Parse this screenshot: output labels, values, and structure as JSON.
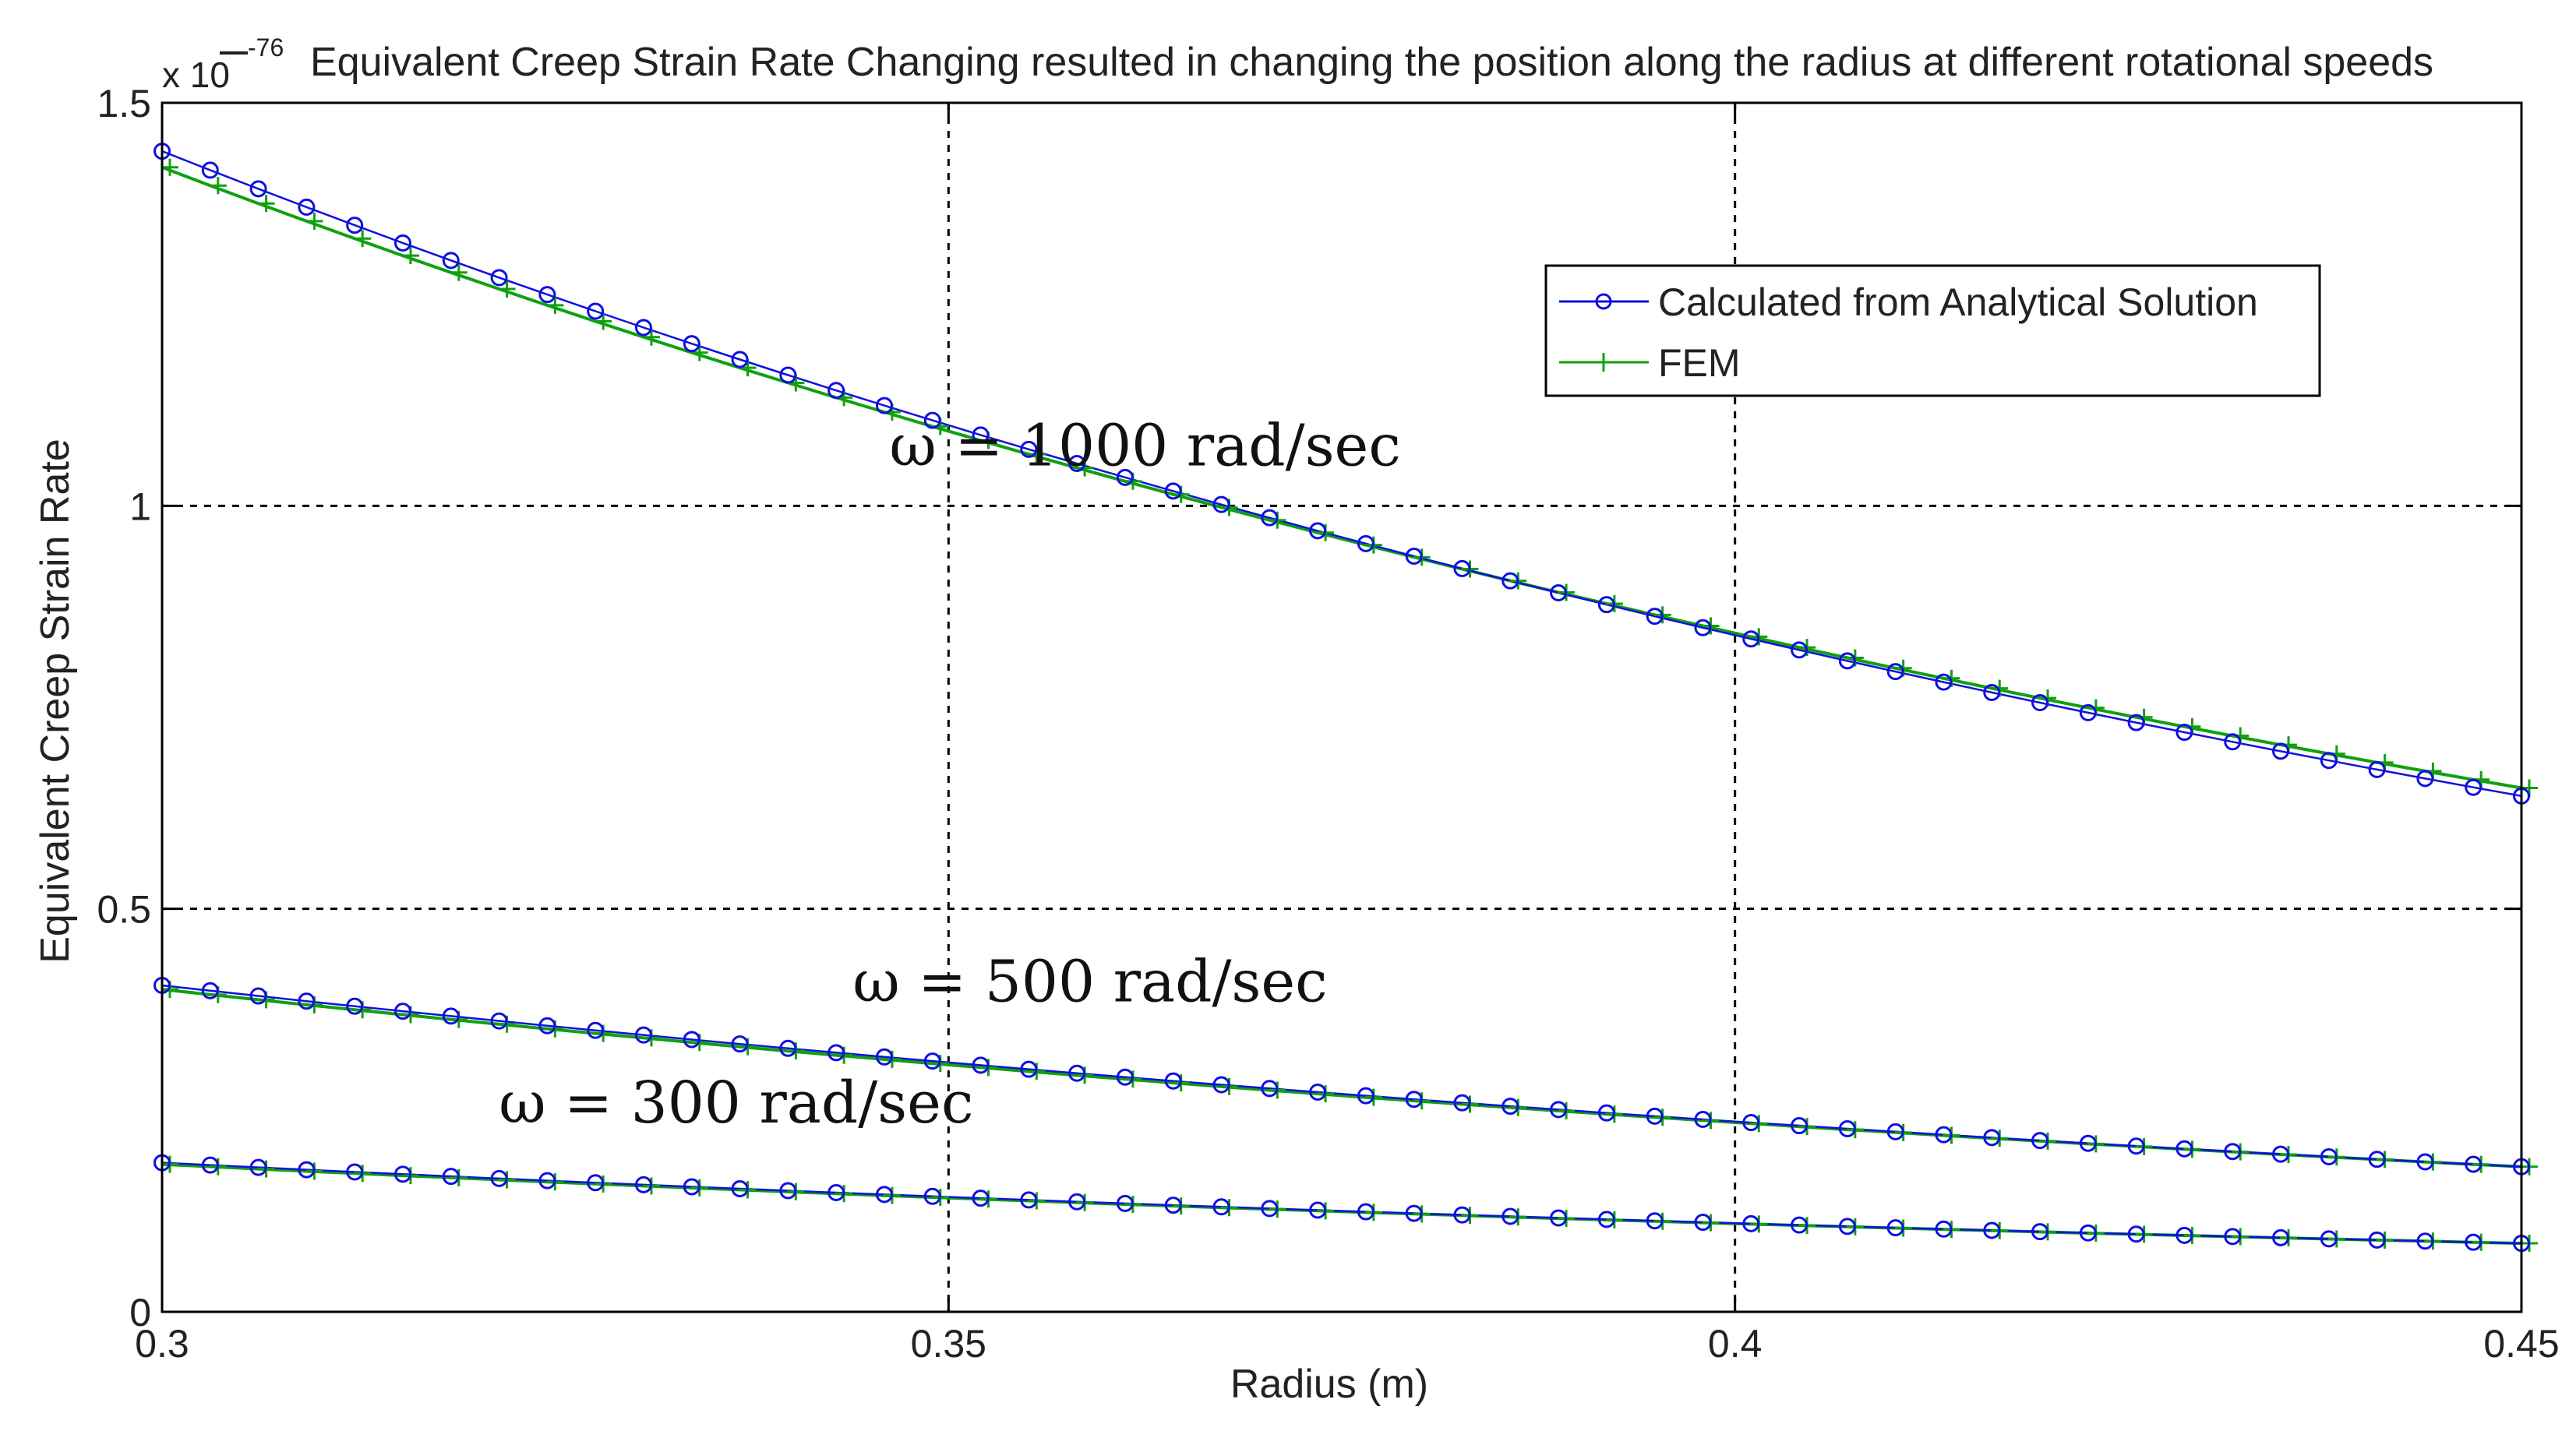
{
  "chart_data": {
    "type": "line",
    "title": "Equivalent Creep Strain Rate Changing resulted in changing the position along the radius at different rotational speeds",
    "xlabel": "Radius (m)",
    "ylabel": "Equivalent Creep Strain Rate",
    "y_multiplier_label": "x 10",
    "y_multiplier_exponent": "-76",
    "xlim": [
      0.3,
      0.45
    ],
    "ylim": [
      0,
      1.5
    ],
    "xticks": [
      0.3,
      0.35,
      0.4,
      0.45
    ],
    "xtick_labels": [
      "0.3",
      "0.35",
      "0.4",
      "0.45"
    ],
    "yticks": [
      0,
      0.5,
      1,
      1.5
    ],
    "ytick_labels": [
      "0",
      "0.5",
      "1",
      "1.5"
    ],
    "grid": true,
    "legend_position": "top-right",
    "legend": [
      {
        "label": "Calculated from Analytical Solution",
        "color": "#1010e0",
        "marker": "circle"
      },
      {
        "label": "FEM",
        "color": "#10a010",
        "marker": "plus"
      }
    ],
    "annotations": [
      {
        "text": "ω = 1000 rad/sec",
        "x": 0.3625,
        "y": 1.05
      },
      {
        "text": "ω = 500 rad/sec",
        "x": 0.359,
        "y": 0.385
      },
      {
        "text": "ω = 300 rad/sec",
        "x": 0.3365,
        "y": 0.235
      }
    ],
    "curves": [
      {
        "name": "ω = 1000 rad/sec",
        "x_start": 0.3,
        "x_end": 0.45,
        "analytical_endpoints": [
          1.44,
          0.64
        ],
        "fem_endpoints": [
          1.42,
          0.65
        ],
        "shape": 0.8,
        "analytical_points": 50,
        "fem_points": 50
      },
      {
        "name": "ω = 500 rad/sec",
        "x_start": 0.3,
        "x_end": 0.45,
        "analytical_endpoints": [
          0.405,
          0.18
        ],
        "fem_endpoints": [
          0.4,
          0.18
        ],
        "shape": 0.8,
        "analytical_points": 50,
        "fem_points": 50
      },
      {
        "name": "ω = 300 rad/sec",
        "x_start": 0.3,
        "x_end": 0.45,
        "analytical_endpoints": [
          0.185,
          0.085
        ],
        "fem_endpoints": [
          0.183,
          0.085
        ],
        "shape": 0.8,
        "analytical_points": 50,
        "fem_points": 50
      }
    ]
  }
}
